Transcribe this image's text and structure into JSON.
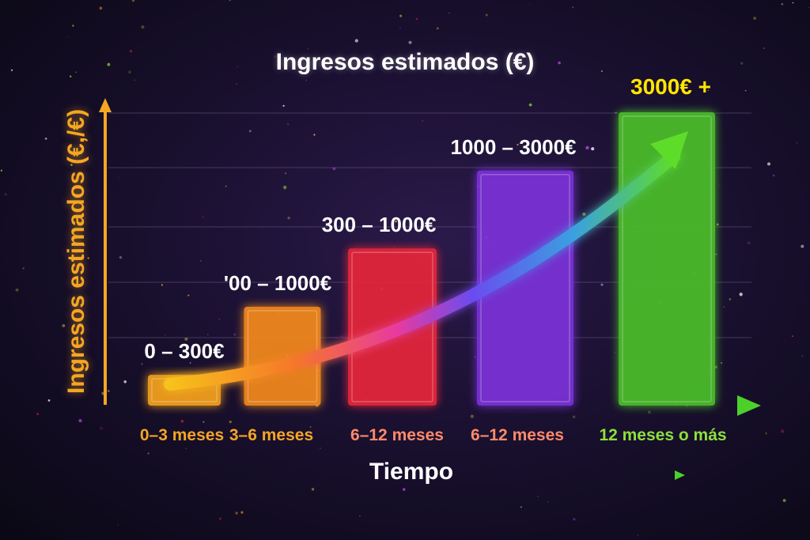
{
  "chart_data": {
    "type": "bar",
    "title": "Ingresos estimados (€)",
    "ylabel": "Ingresos estimados (€,/€)",
    "xlabel": "Tiempo",
    "categories": [
      "0–3 meses",
      "3–6 meses",
      "6–12 meses",
      "6–12 meses",
      "12 meses o más"
    ],
    "values": [
      300,
      1000,
      1600,
      2400,
      3000
    ],
    "data_labels": [
      "0 – 300€",
      "'00 – 1000€",
      "300 – 1000€",
      "1000 – 3000€",
      "3000€ +"
    ],
    "ylim": [
      0,
      3000
    ],
    "grid": true,
    "legend": "none",
    "colors": [
      "#f7a21b",
      "#f58a1f",
      "#e8283a",
      "#7b32d9",
      "#4cbf2a"
    ],
    "label_colors": [
      "#ffffff",
      "#ffffff",
      "#ffffff",
      "#ffffff",
      "#ffe600"
    ],
    "tick_colors": [
      "#f5a623",
      "#f5a623",
      "#ff8a6a",
      "#ff8a6a",
      "#8de03a"
    ],
    "trend_arrow": true
  }
}
